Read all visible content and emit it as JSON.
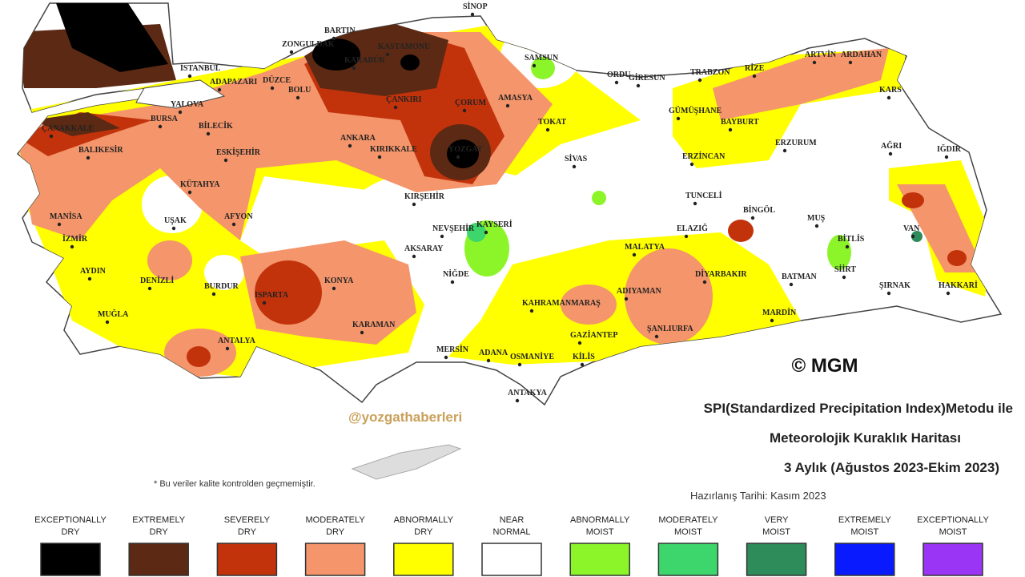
{
  "map": {
    "cities": [
      "SİNOP",
      "BARTIN",
      "ZONGULDAK",
      "KARABÜK",
      "KASTAMONU",
      "SAMSUN",
      "İSTANBUL",
      "ADAPAZARI",
      "DÜZCE",
      "BOLU",
      "YALOVA",
      "BURSA",
      "BİLECİK",
      "ÇANAKKALE",
      "BALIKESİR",
      "ESKİŞEHİR",
      "ANKARA",
      "KIRIKKALE",
      "ÇANKIRI",
      "ÇORUM",
      "AMASYA",
      "TOKAT",
      "YOZGAT",
      "ORDU",
      "GİRESUN",
      "TRABZON",
      "RİZE",
      "ARTVİN",
      "ARDAHAN",
      "KARS",
      "GÜMÜŞHANE",
      "BAYBURT",
      "ERZURUM",
      "ERZİNCAN",
      "AĞRI",
      "IĞDIR",
      "SİVAS",
      "KÜTAHYA",
      "UŞAK",
      "AFYON",
      "MANİSA",
      "İZMİR",
      "AYDIN",
      "DENİZLİ",
      "BURDUR",
      "MUĞLA",
      "ISPARTA",
      "ANTALYA",
      "KONYA",
      "KARAMAN",
      "KIRŞEHİR",
      "NEVŞEHİR",
      "KAYSERİ",
      "AKSARAY",
      "NİĞDE",
      "MERSİN",
      "ADANA",
      "OSMANİYE",
      "GAZİANTEP",
      "KİLİS",
      "ANTAKYA",
      "KAHRAMANMARAŞ",
      "ADIYAMAN",
      "MALATYA",
      "ELAZIĞ",
      "TUNCELİ",
      "BİNGÖL",
      "MUŞ",
      "BİTLİS",
      "VAN",
      "SİİRT",
      "DİYARBAKIR",
      "BATMAN",
      "MARDİN",
      "ŞANLIURFA",
      "ŞIRNAK",
      "HAKKARİ"
    ]
  },
  "copyright": "© MGM",
  "watermark": "@yozgathaberleri",
  "title": {
    "lines": [
      "SPI(Standardized Precipitation Index)Metodu ile",
      "Meteorolojik Kuraklık Haritası",
      "3 Aylık (Ağustos 2023-Ekim 2023)"
    ],
    "date": "Hazırlanış Tarihi: Kasım 2023"
  },
  "note": "* Bu veriler kalite kontrolden geçmemiştir.",
  "legend": [
    {
      "lines": [
        "EXCEPTIONALLY",
        "DRY"
      ],
      "color": "#000000"
    },
    {
      "lines": [
        "EXTREMELY",
        "DRY"
      ],
      "color": "#5c2a14"
    },
    {
      "lines": [
        "SEVERELY",
        "DRY"
      ],
      "color": "#c2330c"
    },
    {
      "lines": [
        "MODERATELY",
        "DRY"
      ],
      "color": "#f4956b"
    },
    {
      "lines": [
        "ABNORMALLY",
        "DRY"
      ],
      "color": "#ffff00"
    },
    {
      "lines": [
        "NEAR",
        "NORMAL"
      ],
      "color": "#ffffff"
    },
    {
      "lines": [
        "ABNORMALLY",
        "MOIST"
      ],
      "color": "#8cf52a"
    },
    {
      "lines": [
        "MODERATELY",
        "MOIST"
      ],
      "color": "#3dd66c"
    },
    {
      "lines": [
        "VERY",
        "MOIST"
      ],
      "color": "#2e8b5a"
    },
    {
      "lines": [
        "EXTREMELY",
        "MOIST"
      ],
      "color": "#0a1aff"
    },
    {
      "lines": [
        "EXCEPTIONALLY",
        "MOIST"
      ],
      "color": "#9b35f5"
    }
  ]
}
